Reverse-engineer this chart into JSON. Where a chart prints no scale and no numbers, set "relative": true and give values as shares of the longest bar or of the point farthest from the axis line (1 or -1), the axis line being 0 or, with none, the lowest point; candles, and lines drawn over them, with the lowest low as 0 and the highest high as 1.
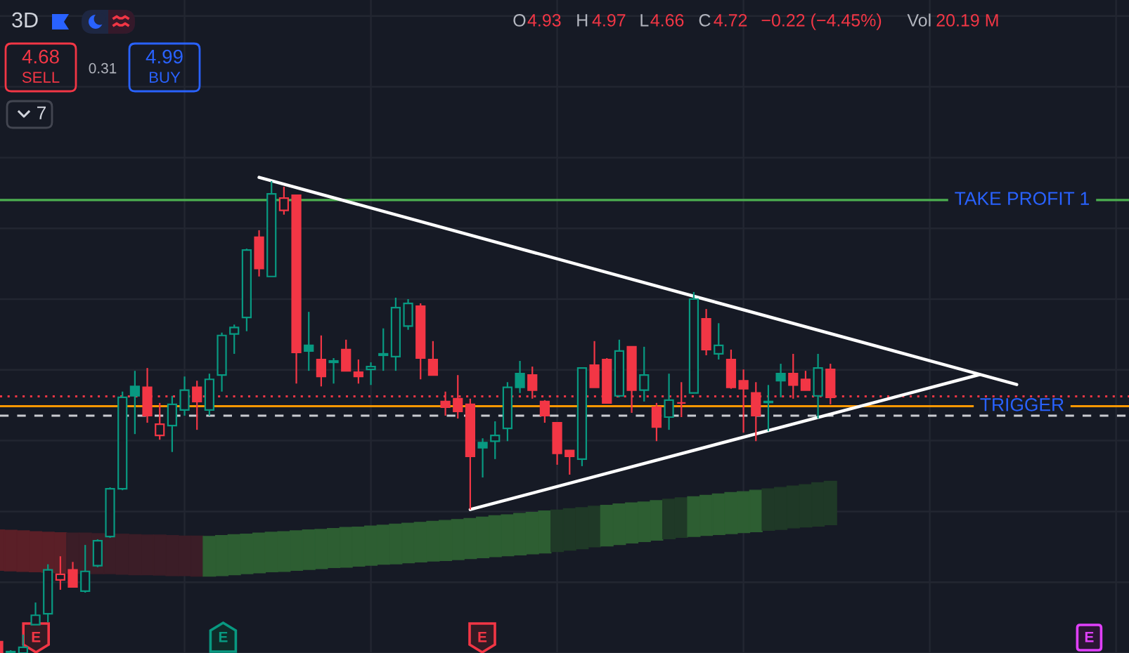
{
  "chart_data": {
    "type": "candlestick",
    "title": "3D",
    "relative": true,
    "grid": true,
    "tick_labels": false,
    "categories": [
      null,
      null,
      null,
      null,
      null,
      null,
      null,
      null,
      null,
      null,
      null,
      null,
      null,
      null,
      null,
      null,
      null,
      null,
      null,
      null,
      null,
      null,
      null,
      null,
      null,
      null,
      null,
      null,
      null,
      null,
      null,
      null,
      null,
      null,
      null,
      null,
      null,
      null,
      null,
      null,
      null,
      null,
      null,
      null,
      null,
      null,
      null,
      null,
      null,
      null,
      null,
      null,
      null,
      null,
      null,
      null,
      null,
      null,
      null,
      null,
      null,
      null,
      null,
      null,
      null,
      null,
      null,
      null,
      null,
      null,
      null,
      null,
      null,
      null,
      null,
      null,
      null,
      null,
      null,
      null,
      null,
      null,
      null,
      null,
      null,
      null,
      null,
      null,
      null,
      null,
      null,
      null
    ],
    "ohlc": [
      [
        0.024,
        0.024,
        0,
        0
      ],
      [
        0,
        0.006,
        0,
        0.003
      ],
      [
        0,
        0.039,
        0,
        0.012
      ],
      [
        0.06,
        0.107,
        0.06,
        0.08
      ],
      [
        0.083,
        0.188,
        0.065,
        0.176
      ],
      [
        0.155,
        0.205,
        0.134,
        0.167
      ],
      [
        0.176,
        0.193,
        0.14,
        0.14
      ],
      [
        0.131,
        0.229,
        0.128,
        0.173
      ],
      [
        0.185,
        0.241,
        0.182,
        0.238
      ],
      [
        0.247,
        0.351,
        0.244,
        0.348
      ],
      [
        0.348,
        0.554,
        0.345,
        0.542
      ],
      [
        0.565,
        0.598,
        0.464,
        0.545
      ],
      [
        0.563,
        0.604,
        0.488,
        0.503
      ],
      [
        0.461,
        0.53,
        0.452,
        0.485
      ],
      [
        0.482,
        0.545,
        0.426,
        0.527
      ],
      [
        0.515,
        0.586,
        0.503,
        0.557
      ],
      [
        0.563,
        0.577,
        0.473,
        0.533
      ],
      [
        0.515,
        0.592,
        0.503,
        0.58
      ],
      [
        0.589,
        0.679,
        0.554,
        0.673
      ],
      [
        0.676,
        0.696,
        0.634,
        0.69
      ],
      [
        0.711,
        0.857,
        0.682,
        0.854
      ],
      [
        0.881,
        0.896,
        0.798,
        0.815
      ],
      [
        0.798,
        1,
        0.798,
        0.973
      ],
      [
        0.938,
        0.988,
        0.929,
        0.964
      ],
      [
        0.97,
        0.97,
        0.571,
        0.637
      ],
      [
        0.652,
        0.723,
        0.598,
        0.64
      ],
      [
        0.622,
        0.673,
        0.565,
        0.586
      ],
      [
        0.616,
        0.625,
        0.571,
        0.619
      ],
      [
        0.643,
        0.664,
        0.598,
        0.598
      ],
      [
        0.595,
        0.622,
        0.571,
        0.586
      ],
      [
        0.601,
        0.616,
        0.568,
        0.607
      ],
      [
        0.631,
        0.688,
        0.598,
        0.634
      ],
      [
        0.628,
        0.753,
        0.598,
        0.732
      ],
      [
        0.693,
        0.75,
        0.685,
        0.741
      ],
      [
        0.735,
        0.741,
        0.58,
        0.625
      ],
      [
        0.622,
        0.661,
        0.589,
        0.589
      ],
      [
        0.533,
        0.554,
        0.503,
        0.521
      ],
      [
        0.539,
        0.589,
        0.497,
        0.512
      ],
      [
        0.527,
        0.539,
        0.304,
        0.417
      ],
      [
        0.446,
        0.455,
        0.372,
        0.435
      ],
      [
        0.449,
        0.491,
        0.411,
        0.461
      ],
      [
        0.476,
        0.574,
        0.449,
        0.563
      ],
      [
        0.592,
        0.619,
        0.551,
        0.563
      ],
      [
        0.589,
        0.607,
        0.539,
        0.557
      ],
      [
        0.533,
        0.536,
        0.488,
        0.503
      ],
      [
        0.488,
        0.488,
        0.399,
        0.423
      ],
      [
        0.429,
        0.429,
        0.378,
        0.417
      ],
      [
        0.411,
        0.604,
        0.396,
        0.604
      ],
      [
        0.61,
        0.661,
        0.563,
        0.563
      ],
      [
        0.622,
        0.625,
        0.53,
        0.53
      ],
      [
        0.545,
        0.664,
        0.542,
        0.64
      ],
      [
        0.649,
        0.649,
        0.509,
        0.557
      ],
      [
        0.557,
        0.649,
        0.533,
        0.589
      ],
      [
        0.521,
        0.53,
        0.449,
        0.479
      ],
      [
        0.5,
        0.592,
        0.473,
        0.536
      ],
      [
        0.53,
        0.574,
        0.5,
        0.53
      ],
      [
        0.551,
        0.765,
        0.551,
        0.75
      ],
      [
        0.708,
        0.729,
        0.631,
        0.643
      ],
      [
        0.634,
        0.699,
        0.622,
        0.652
      ],
      [
        0.622,
        0.643,
        0.56,
        0.563
      ],
      [
        0.577,
        0.601,
        0.467,
        0.56
      ],
      [
        0.551,
        0.574,
        0.449,
        0.503
      ],
      [
        0.531,
        0.568,
        0.47,
        0.533
      ],
      [
        0.592,
        0.613,
        0.542,
        0.577
      ],
      [
        0.592,
        0.634,
        0.539,
        0.568
      ],
      [
        0.58,
        0.598,
        0.557,
        0.557
      ],
      [
        0.545,
        0.634,
        0.497,
        0.604
      ],
      [
        0.601,
        0.613,
        0.527,
        0.542
      ],
      null,
      null,
      null,
      null,
      null,
      null,
      null,
      null,
      null,
      null,
      null,
      null,
      null,
      null,
      null,
      null,
      null,
      null,
      null,
      null,
      null,
      null,
      null,
      null
    ],
    "colors": [
      "#f23645",
      "#089981",
      "#089981",
      "#089981",
      "#089981",
      "#f23645",
      "#f23645",
      "#089981",
      "#089981",
      "#089981",
      "#089981",
      "#089981",
      "#f23645",
      "#f23645",
      "#089981",
      "#089981",
      "#f23645",
      "#089981",
      "#089981",
      "#089981",
      "#089981",
      "#f23645",
      "#089981",
      "#f23645",
      "#f23645",
      "#089981",
      "#f23645",
      "#089981",
      "#f23645",
      "#f23645",
      "#089981",
      "#089981",
      "#089981",
      "#089981",
      "#f23645",
      "#f23645",
      "#f23645",
      "#f23645",
      "#f23645",
      "#089981",
      "#089981",
      "#089981",
      "#089981",
      "#f23645",
      "#f23645",
      "#f23645",
      "#f23645",
      "#089981",
      "#f23645",
      "#f23645",
      "#089981",
      "#f23645",
      "#089981",
      "#f23645",
      "#089981",
      "#f23645",
      "#089981",
      "#f23645",
      "#089981",
      "#f23645",
      "#f23645",
      "#f23645",
      "#089981",
      "#089981",
      "#f23645",
      "#f23645",
      "#089981",
      "#f23645",
      null,
      null,
      null,
      null,
      null,
      null,
      null,
      null,
      null,
      null,
      null,
      null,
      null,
      null,
      null,
      null,
      null,
      null,
      null,
      null,
      null,
      null,
      null,
      null
    ],
    "series": [
      {
        "type": "line",
        "color": "#ffffff",
        "values": [
          null,
          null,
          null,
          null,
          null,
          null,
          null,
          null,
          null,
          null,
          null,
          null,
          null,
          null,
          null,
          null,
          null,
          null,
          null,
          null,
          null,
          1.008,
          null,
          null,
          null,
          null,
          null,
          null,
          null,
          null,
          null,
          null,
          null,
          null,
          null,
          null,
          null,
          null,
          null,
          null,
          null,
          null,
          null,
          null,
          null,
          null,
          null,
          null,
          null,
          null,
          null,
          null,
          null,
          null,
          null,
          null,
          null,
          null,
          null,
          null,
          null,
          null,
          null,
          null,
          null,
          null,
          null,
          null,
          null,
          null,
          null,
          null,
          null,
          null,
          null,
          null,
          null,
          null,
          null,
          null,
          null,
          null,
          0.569,
          null,
          null,
          null,
          null,
          null,
          null,
          null,
          null,
          null
        ]
      },
      {
        "type": "line",
        "color": "#ffffff",
        "values": [
          null,
          null,
          null,
          null,
          null,
          null,
          null,
          null,
          null,
          null,
          null,
          null,
          null,
          null,
          null,
          null,
          null,
          null,
          null,
          null,
          null,
          null,
          null,
          null,
          null,
          null,
          null,
          null,
          null,
          null,
          null,
          null,
          null,
          null,
          null,
          null,
          null,
          null,
          0.304,
          null,
          null,
          null,
          null,
          null,
          null,
          null,
          null,
          null,
          null,
          null,
          null,
          null,
          null,
          null,
          null,
          null,
          null,
          null,
          null,
          null,
          null,
          null,
          null,
          null,
          null,
          null,
          null,
          null,
          null,
          null,
          null,
          null,
          null,
          null,
          null,
          null,
          null,
          null,
          null,
          0.59,
          null,
          null,
          null,
          null,
          null,
          null,
          null,
          null,
          null,
          null,
          null,
          null
        ]
      },
      {
        "type": "bar",
        "base": [
          0.175,
          0.174,
          0.173,
          0.172,
          0.171,
          0.17,
          0.169,
          0.169,
          0.168,
          0.168,
          0.167,
          0.166,
          0.166,
          0.165,
          0.164,
          0.164,
          0.163,
          0.163,
          0.164,
          0.166,
          0.168,
          0.17,
          0.172,
          0.173,
          0.175,
          0.177,
          0.179,
          0.181,
          0.182,
          0.184,
          0.186,
          0.188,
          0.189,
          0.191,
          0.193,
          0.195,
          0.196,
          0.198,
          0.2,
          0.202,
          0.204,
          0.206,
          0.208,
          0.21,
          0.212,
          0.215,
          0.218,
          0.221,
          0.225,
          0.227,
          0.23,
          0.233,
          0.236,
          0.239,
          0.242,
          0.245,
          0.247,
          0.249,
          0.251,
          0.253,
          0.255,
          0.257,
          0.26,
          0.262,
          0.265,
          0.267,
          0.269,
          0.272,
          null,
          null,
          null,
          null,
          null,
          null,
          null,
          null,
          null,
          null,
          null,
          null,
          null,
          null,
          null,
          null,
          null,
          null,
          null,
          null,
          null,
          null,
          null,
          null
        ],
        "values": [
          0.086,
          0.086,
          0.086,
          0.085,
          0.085,
          0.085,
          0.085,
          0.085,
          0.085,
          0.084,
          0.085,
          0.085,
          0.084,
          0.085,
          0.085,
          0.084,
          0.085,
          0.084,
          0.085,
          0.085,
          0.084,
          0.084,
          0.084,
          0.084,
          0.084,
          0.084,
          0.083,
          0.083,
          0.084,
          0.083,
          0.083,
          0.083,
          0.084,
          0.084,
          0.084,
          0.084,
          0.085,
          0.085,
          0.085,
          0.086,
          0.087,
          0.087,
          0.088,
          0.088,
          0.089,
          0.088,
          0.088,
          0.087,
          0.086,
          0.086,
          0.086,
          0.085,
          0.084,
          0.084,
          0.084,
          0.084,
          0.084,
          0.085,
          0.086,
          0.087,
          0.087,
          0.088,
          0.088,
          0.089,
          0.089,
          0.09,
          0.092,
          0.092,
          null,
          null,
          null,
          null,
          null,
          null,
          null,
          null,
          null,
          null,
          null,
          null,
          null,
          null,
          null,
          null,
          null,
          null,
          null,
          null,
          null,
          null,
          null,
          null
        ],
        "colors": [
          "#5a1f27",
          "#5a1f27",
          "#5a1f27",
          "#5a1f27",
          "#5a1f27",
          "#5a1f27",
          "#3b1d27",
          "#3b1d27",
          "#3b1d27",
          "#3b1d27",
          "#3b1d27",
          "#3b1d27",
          "#3b1d27",
          "#3b1d27",
          "#3b1d27",
          "#3b1d27",
          "#3b1d27",
          "#2d5e32",
          "#2d5e32",
          "#2d5e32",
          "#2d5e32",
          "#2d5e32",
          "#2d5e32",
          "#2d5e32",
          "#2d5e32",
          "#2d5e32",
          "#2d5e32",
          "#2d5e32",
          "#2d5e32",
          "#2d5e32",
          "#2d5e32",
          "#2d5e32",
          "#2d5e32",
          "#2d5e32",
          "#2d5e32",
          "#2d5e32",
          "#2d5e32",
          "#2d5e32",
          "#2d5e32",
          "#2d5e32",
          "#2d5e32",
          "#2d5e32",
          "#2d5e32",
          "#2d5e32",
          "#2d5e32",
          "#1f3927",
          "#1f3927",
          "#1f3927",
          "#1f3927",
          "#2d5e32",
          "#2d5e32",
          "#2d5e32",
          "#2d5e32",
          "#2d5e32",
          "#1f3927",
          "#1f3927",
          "#2d5e32",
          "#2d5e32",
          "#2d5e32",
          "#2d5e32",
          "#2d5e32",
          "#2d5e32",
          "#1f3927",
          "#1f3927",
          "#1f3927",
          "#1f3927",
          "#1f3927",
          "#1f3927",
          null,
          null,
          null,
          null,
          null,
          null,
          null,
          null,
          null,
          null,
          null,
          null,
          null,
          null,
          null,
          null,
          null,
          null,
          null,
          null,
          null,
          null,
          null,
          null
        ]
      }
    ],
    "ref_lines": [
      {
        "axis": "y",
        "value": 0.96,
        "label": "TAKE PROFIT 1",
        "color": "#4caf50",
        "line_style": "solid"
      },
      {
        "axis": "y",
        "value": 0.523,
        "label": "TRIGGER",
        "color": "#ff9800",
        "line_style": "solid"
      },
      {
        "axis": "y",
        "value": 0.544,
        "color": "#f23645",
        "line_style": "dotted"
      },
      {
        "axis": "y",
        "value": 0.503,
        "color": "#c9cbd1",
        "line_style": "dashed"
      }
    ],
    "annotations": [
      "O",
      "4.93",
      "H",
      "4.97",
      "L",
      "4.66",
      "C",
      "4.72",
      "−0.22 (−4.45%)",
      "Vol",
      "20.19 M",
      "4.68",
      "SELL",
      "0.31",
      "4.99",
      "BUY",
      "7",
      "E",
      "E",
      "E",
      "E"
    ]
  }
}
